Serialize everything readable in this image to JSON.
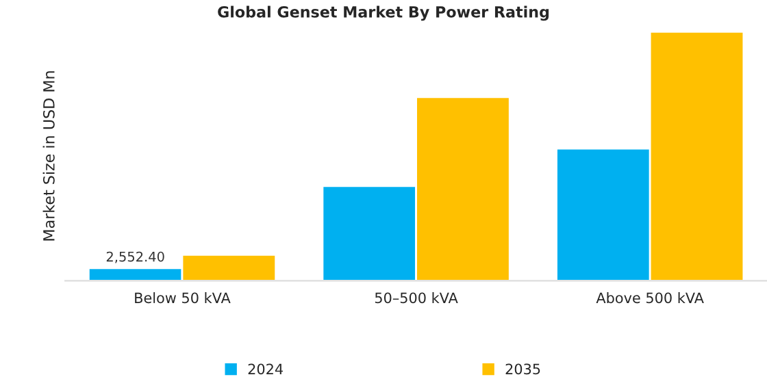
{
  "chart_data": {
    "type": "bar",
    "title": "Global Genset Market By Power Rating",
    "ylabel": "Market Size in USD Mn",
    "categories": [
      "Below 50 kVA",
      "50–500 kVA",
      "Above 500 kVA"
    ],
    "ylim": [
      0,
      50000
    ],
    "legend": "bottom",
    "grid": false,
    "series": [
      {
        "name": "2024",
        "color": "#00b0f0",
        "values": [
          2552.4,
          19000,
          26500
        ],
        "value_labels": [
          "2,552.40",
          null,
          null
        ]
      },
      {
        "name": "2035",
        "color": "#ffc000",
        "values": [
          5200,
          36800,
          49900
        ]
      }
    ]
  }
}
